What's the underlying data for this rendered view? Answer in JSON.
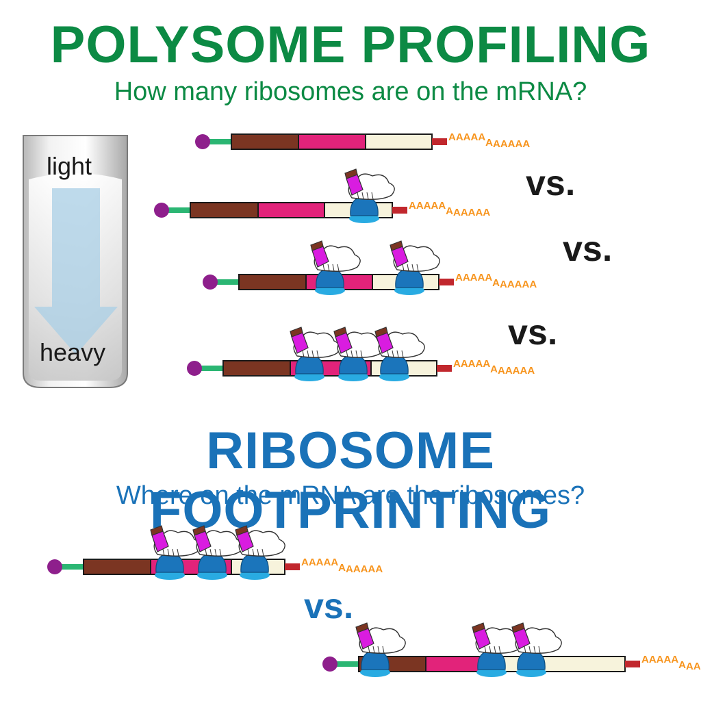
{
  "polysome": {
    "title": "POLYSOME PROFILING",
    "subtitle": "How many ribosomes are on the mRNA?"
  },
  "tube": {
    "top_label": "light",
    "bottom_label": "heavy"
  },
  "footprinting": {
    "title": "RIBOSOME FOOTPRINTING",
    "subtitle": "Where on the mRNA are the ribosomes?"
  },
  "separators": {
    "vs1": "vs.",
    "vs2": "vs.",
    "vs3": "vs.",
    "vs4": "vs."
  },
  "polya": {
    "part1": "AAAAA",
    "part2": "A",
    "part3": "AAAAA"
  },
  "colors": {
    "cap": "#8e1f8c",
    "linker": "#2bb673",
    "utr5": "#7b3522",
    "cds": "#e2237a",
    "utr3": "#f7f3dc",
    "tail": "#c1272d",
    "polya": "#f7941d",
    "ribosome_large": "#ffffff",
    "ribosome_small": "#1b75bb",
    "ribosome_base": "#29abe2",
    "trna": "#d91ce0",
    "green_title": "#0c8a44",
    "blue_title": "#1a72b8"
  },
  "mrna_ribosome_counts": [
    0,
    1,
    2,
    3,
    3,
    3
  ]
}
